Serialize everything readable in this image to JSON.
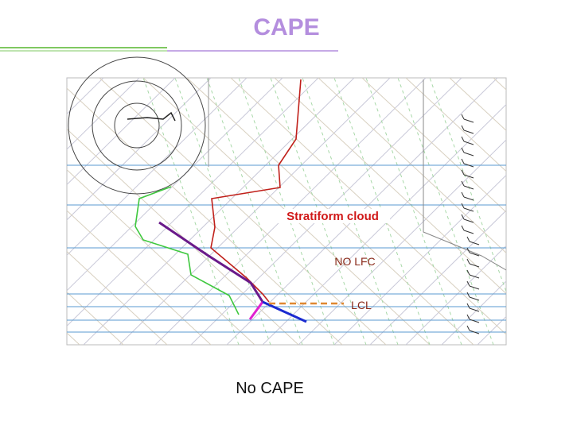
{
  "header": {
    "title": "CAPE"
  },
  "diagram": {
    "annotations": [
      "Stratiform cloud",
      "NO LFC",
      "LCL"
    ]
  },
  "caption": "No CAPE"
}
